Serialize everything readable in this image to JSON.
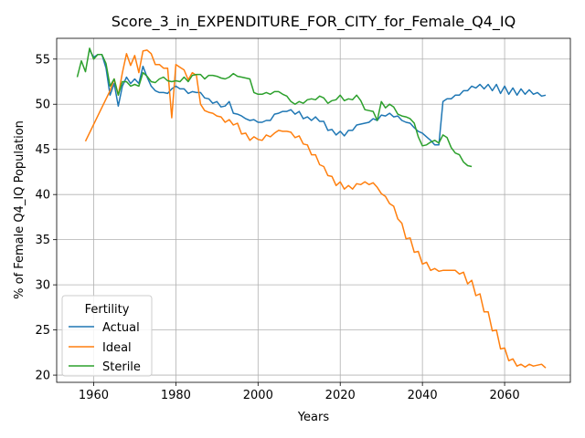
{
  "chart_data": {
    "type": "line",
    "title": "Score_3_in_EXPENDITURE_FOR_CITY_for_Female_Q4_IQ",
    "xlabel": "Years",
    "ylabel": "% of Female Q4_IQ Population",
    "xlim": [
      1951,
      2076
    ],
    "ylim": [
      19.2,
      57.3
    ],
    "xticks": [
      1960,
      1980,
      2000,
      2020,
      2040,
      2060
    ],
    "yticks": [
      20,
      25,
      30,
      35,
      40,
      45,
      50,
      55
    ],
    "grid": true,
    "legend": {
      "title": "Fertility",
      "placement": "bottom-left"
    },
    "series": [
      {
        "name": "Actual",
        "color": "#1f77b4",
        "points": [
          [
            1959,
            56.0
          ],
          [
            1960,
            55.2
          ],
          [
            1961,
            55.5
          ],
          [
            1962,
            55.5
          ],
          [
            1963,
            54.0
          ],
          [
            1964,
            51.0
          ],
          [
            1965,
            52.3
          ],
          [
            1966,
            49.8
          ],
          [
            1967,
            52.0
          ],
          [
            1968,
            53.0
          ],
          [
            1969,
            52.3
          ],
          [
            1970,
            52.8
          ],
          [
            1971,
            52.3
          ],
          [
            1972,
            54.2
          ],
          [
            1973,
            53.0
          ],
          [
            1974,
            52.0
          ],
          [
            1975,
            51.5
          ],
          [
            1976,
            51.3
          ],
          [
            1977,
            51.3
          ],
          [
            1978,
            51.2
          ],
          [
            1979,
            51.7
          ],
          [
            1980,
            52.0
          ],
          [
            1981,
            51.7
          ],
          [
            1982,
            51.7
          ],
          [
            1983,
            51.2
          ],
          [
            1984,
            51.4
          ],
          [
            1985,
            51.3
          ],
          [
            1986,
            51.3
          ],
          [
            1987,
            50.7
          ],
          [
            1988,
            50.6
          ],
          [
            1989,
            50.1
          ],
          [
            1990,
            50.3
          ],
          [
            1991,
            49.7
          ],
          [
            1992,
            49.8
          ],
          [
            1993,
            50.3
          ],
          [
            1994,
            49.0
          ],
          [
            1995,
            48.9
          ],
          [
            1996,
            48.7
          ],
          [
            1997,
            48.4
          ],
          [
            1998,
            48.2
          ],
          [
            1999,
            48.3
          ],
          [
            2000,
            48.0
          ],
          [
            2001,
            48.0
          ],
          [
            2002,
            48.2
          ],
          [
            2003,
            48.2
          ],
          [
            2004,
            48.9
          ],
          [
            2005,
            49.0
          ],
          [
            2006,
            49.2
          ],
          [
            2007,
            49.2
          ],
          [
            2008,
            49.4
          ],
          [
            2009,
            48.9
          ],
          [
            2010,
            49.2
          ],
          [
            2011,
            48.4
          ],
          [
            2012,
            48.6
          ],
          [
            2013,
            48.2
          ],
          [
            2014,
            48.6
          ],
          [
            2015,
            48.1
          ],
          [
            2016,
            48.1
          ],
          [
            2017,
            47.1
          ],
          [
            2018,
            47.2
          ],
          [
            2019,
            46.6
          ],
          [
            2020,
            47.0
          ],
          [
            2021,
            46.5
          ],
          [
            2022,
            47.1
          ],
          [
            2023,
            47.1
          ],
          [
            2024,
            47.7
          ],
          [
            2025,
            47.8
          ],
          [
            2026,
            47.9
          ],
          [
            2027,
            48.0
          ],
          [
            2028,
            48.4
          ],
          [
            2029,
            48.2
          ],
          [
            2030,
            48.8
          ],
          [
            2031,
            48.7
          ],
          [
            2032,
            49.0
          ],
          [
            2033,
            48.6
          ],
          [
            2034,
            48.7
          ],
          [
            2035,
            48.2
          ],
          [
            2036,
            48.0
          ],
          [
            2037,
            47.9
          ],
          [
            2038,
            47.4
          ],
          [
            2039,
            47.0
          ],
          [
            2040,
            46.8
          ],
          [
            2041,
            46.4
          ],
          [
            2042,
            46.0
          ],
          [
            2043,
            45.5
          ],
          [
            2044,
            45.5
          ],
          [
            2045,
            50.3
          ],
          [
            2046,
            50.6
          ],
          [
            2047,
            50.6
          ],
          [
            2048,
            51.0
          ],
          [
            2049,
            51.0
          ],
          [
            2050,
            51.5
          ],
          [
            2051,
            51.5
          ],
          [
            2052,
            52.0
          ],
          [
            2053,
            51.8
          ],
          [
            2054,
            52.2
          ],
          [
            2055,
            51.7
          ],
          [
            2056,
            52.2
          ],
          [
            2057,
            51.5
          ],
          [
            2058,
            52.2
          ],
          [
            2059,
            51.2
          ],
          [
            2060,
            52.0
          ],
          [
            2061,
            51.1
          ],
          [
            2062,
            51.8
          ],
          [
            2063,
            51.0
          ],
          [
            2064,
            51.7
          ],
          [
            2065,
            51.1
          ],
          [
            2066,
            51.6
          ],
          [
            2067,
            51.1
          ],
          [
            2068,
            51.3
          ],
          [
            2069,
            50.9
          ],
          [
            2070,
            51.0
          ]
        ]
      },
      {
        "name": "Ideal",
        "color": "#ff7f0e",
        "points": [
          [
            1958,
            45.9
          ],
          [
            1964,
            51.5
          ],
          [
            1965,
            52.8
          ],
          [
            1966,
            51.0
          ],
          [
            1967,
            53.5
          ],
          [
            1968,
            55.6
          ],
          [
            1969,
            54.3
          ],
          [
            1970,
            55.4
          ],
          [
            1971,
            53.5
          ],
          [
            1972,
            55.9
          ],
          [
            1973,
            56.0
          ],
          [
            1974,
            55.6
          ],
          [
            1975,
            54.4
          ],
          [
            1976,
            54.4
          ],
          [
            1977,
            54.0
          ],
          [
            1978,
            54.0
          ],
          [
            1979,
            48.5
          ],
          [
            1980,
            54.4
          ],
          [
            1981,
            54.1
          ],
          [
            1982,
            53.8
          ],
          [
            1983,
            52.7
          ],
          [
            1984,
            53.5
          ],
          [
            1985,
            53.2
          ],
          [
            1986,
            50.0
          ],
          [
            1987,
            49.3
          ],
          [
            1988,
            49.1
          ],
          [
            1989,
            49.0
          ],
          [
            1990,
            48.7
          ],
          [
            1991,
            48.6
          ],
          [
            1992,
            48.0
          ],
          [
            1993,
            48.3
          ],
          [
            1994,
            47.7
          ],
          [
            1995,
            47.9
          ],
          [
            1996,
            46.7
          ],
          [
            1997,
            46.8
          ],
          [
            1998,
            46.0
          ],
          [
            1999,
            46.4
          ],
          [
            2000,
            46.1
          ],
          [
            2001,
            46.0
          ],
          [
            2002,
            46.6
          ],
          [
            2003,
            46.4
          ],
          [
            2004,
            46.8
          ],
          [
            2005,
            47.1
          ],
          [
            2006,
            47.0
          ],
          [
            2007,
            47.0
          ],
          [
            2008,
            46.9
          ],
          [
            2009,
            46.3
          ],
          [
            2010,
            46.5
          ],
          [
            2011,
            45.6
          ],
          [
            2012,
            45.5
          ],
          [
            2013,
            44.4
          ],
          [
            2014,
            44.4
          ],
          [
            2015,
            43.3
          ],
          [
            2016,
            43.1
          ],
          [
            2017,
            42.1
          ],
          [
            2018,
            42.0
          ],
          [
            2019,
            41.0
          ],
          [
            2020,
            41.4
          ],
          [
            2021,
            40.6
          ],
          [
            2022,
            41.0
          ],
          [
            2023,
            40.6
          ],
          [
            2024,
            41.2
          ],
          [
            2025,
            41.1
          ],
          [
            2026,
            41.4
          ],
          [
            2027,
            41.1
          ],
          [
            2028,
            41.3
          ],
          [
            2029,
            40.8
          ],
          [
            2030,
            40.1
          ],
          [
            2031,
            39.8
          ],
          [
            2032,
            39.0
          ],
          [
            2033,
            38.7
          ],
          [
            2034,
            37.3
          ],
          [
            2035,
            36.8
          ],
          [
            2036,
            35.1
          ],
          [
            2037,
            35.2
          ],
          [
            2038,
            33.6
          ],
          [
            2039,
            33.7
          ],
          [
            2040,
            32.3
          ],
          [
            2041,
            32.5
          ],
          [
            2042,
            31.6
          ],
          [
            2043,
            31.8
          ],
          [
            2044,
            31.5
          ],
          [
            2045,
            31.6
          ],
          [
            2046,
            31.6
          ],
          [
            2047,
            31.6
          ],
          [
            2048,
            31.6
          ],
          [
            2049,
            31.2
          ],
          [
            2050,
            31.4
          ],
          [
            2051,
            30.1
          ],
          [
            2052,
            30.5
          ],
          [
            2053,
            28.8
          ],
          [
            2054,
            29.0
          ],
          [
            2055,
            27.0
          ],
          [
            2056,
            27.0
          ],
          [
            2057,
            24.9
          ],
          [
            2058,
            25.0
          ],
          [
            2059,
            22.9
          ],
          [
            2060,
            23.0
          ],
          [
            2061,
            21.6
          ],
          [
            2062,
            21.8
          ],
          [
            2063,
            21.0
          ],
          [
            2064,
            21.2
          ],
          [
            2065,
            20.9
          ],
          [
            2066,
            21.2
          ],
          [
            2067,
            21.0
          ],
          [
            2068,
            21.1
          ],
          [
            2069,
            21.2
          ],
          [
            2070,
            20.8
          ]
        ]
      },
      {
        "name": "Sterile",
        "color": "#2ca02c",
        "points": [
          [
            1956,
            53.0
          ],
          [
            1957,
            54.8
          ],
          [
            1958,
            53.6
          ],
          [
            1959,
            56.2
          ],
          [
            1960,
            55.0
          ],
          [
            1961,
            55.5
          ],
          [
            1962,
            55.5
          ],
          [
            1963,
            54.5
          ],
          [
            1964,
            52.0
          ],
          [
            1965,
            52.8
          ],
          [
            1966,
            51.0
          ],
          [
            1967,
            52.5
          ],
          [
            1968,
            52.5
          ],
          [
            1969,
            52.0
          ],
          [
            1970,
            52.2
          ],
          [
            1971,
            52.0
          ],
          [
            1972,
            53.5
          ],
          [
            1973,
            53.1
          ],
          [
            1974,
            52.5
          ],
          [
            1975,
            52.4
          ],
          [
            1976,
            52.8
          ],
          [
            1977,
            53.0
          ],
          [
            1978,
            52.6
          ],
          [
            1979,
            52.5
          ],
          [
            1980,
            52.6
          ],
          [
            1981,
            52.5
          ],
          [
            1982,
            53.0
          ],
          [
            1983,
            52.5
          ],
          [
            1984,
            53.2
          ],
          [
            1985,
            53.3
          ],
          [
            1986,
            53.3
          ],
          [
            1987,
            52.8
          ],
          [
            1988,
            53.2
          ],
          [
            1989,
            53.2
          ],
          [
            1990,
            53.1
          ],
          [
            1991,
            52.9
          ],
          [
            1992,
            52.8
          ],
          [
            1993,
            53.0
          ],
          [
            1994,
            53.4
          ],
          [
            1995,
            53.1
          ],
          [
            1996,
            53.0
          ],
          [
            1997,
            52.9
          ],
          [
            1998,
            52.8
          ],
          [
            1999,
            51.3
          ],
          [
            2000,
            51.1
          ],
          [
            2001,
            51.1
          ],
          [
            2002,
            51.3
          ],
          [
            2003,
            51.1
          ],
          [
            2004,
            51.4
          ],
          [
            2005,
            51.4
          ],
          [
            2006,
            51.1
          ],
          [
            2007,
            50.9
          ],
          [
            2008,
            50.3
          ],
          [
            2009,
            50.0
          ],
          [
            2010,
            50.3
          ],
          [
            2011,
            50.1
          ],
          [
            2012,
            50.5
          ],
          [
            2013,
            50.6
          ],
          [
            2014,
            50.5
          ],
          [
            2015,
            50.9
          ],
          [
            2016,
            50.7
          ],
          [
            2017,
            50.1
          ],
          [
            2018,
            50.4
          ],
          [
            2019,
            50.5
          ],
          [
            2020,
            51.0
          ],
          [
            2021,
            50.4
          ],
          [
            2022,
            50.6
          ],
          [
            2023,
            50.5
          ],
          [
            2024,
            51.0
          ],
          [
            2025,
            50.4
          ],
          [
            2026,
            49.4
          ],
          [
            2027,
            49.3
          ],
          [
            2028,
            49.2
          ],
          [
            2029,
            48.2
          ],
          [
            2030,
            50.3
          ],
          [
            2031,
            49.6
          ],
          [
            2032,
            50.0
          ],
          [
            2033,
            49.7
          ],
          [
            2034,
            48.9
          ],
          [
            2035,
            48.7
          ],
          [
            2036,
            48.6
          ],
          [
            2037,
            48.4
          ],
          [
            2038,
            47.9
          ],
          [
            2039,
            46.4
          ],
          [
            2040,
            45.4
          ],
          [
            2041,
            45.5
          ],
          [
            2042,
            45.8
          ],
          [
            2043,
            46.0
          ],
          [
            2044,
            45.7
          ],
          [
            2045,
            46.6
          ],
          [
            2046,
            46.3
          ],
          [
            2047,
            45.2
          ],
          [
            2048,
            44.6
          ],
          [
            2049,
            44.4
          ],
          [
            2050,
            43.6
          ],
          [
            2051,
            43.2
          ],
          [
            2052,
            43.1
          ]
        ]
      }
    ]
  }
}
